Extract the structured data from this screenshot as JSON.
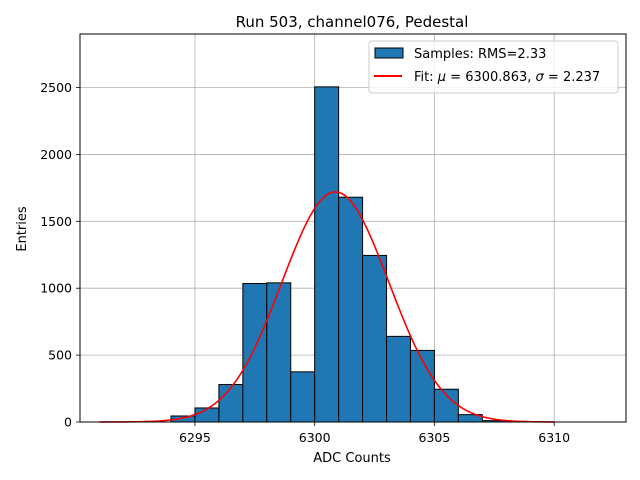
{
  "chart_data": {
    "type": "bar",
    "title": "Run 503, channel076, Pedestal",
    "xlabel": "ADC Counts",
    "ylabel": "Entries",
    "xlim": [
      6290.2,
      6313.0
    ],
    "ylim": [
      0,
      2900
    ],
    "xticks": [
      6295,
      6300,
      6305,
      6310
    ],
    "yticks": [
      0,
      500,
      1000,
      1500,
      2000,
      2500
    ],
    "grid": true,
    "bar_color": "#1f77b4",
    "bar_edge_color": "#000000",
    "fit_color": "#ff0000",
    "histogram": {
      "name": "Samples: RMS=2.33",
      "bins": [
        {
          "x0": 6294.0,
          "x1": 6295.0,
          "count": 45
        },
        {
          "x0": 6295.0,
          "x1": 6296.0,
          "count": 105
        },
        {
          "x0": 6296.0,
          "x1": 6297.0,
          "count": 280
        },
        {
          "x0": 6297.0,
          "x1": 6298.0,
          "count": 1035
        },
        {
          "x0": 6298.0,
          "x1": 6299.0,
          "count": 1040
        },
        {
          "x0": 6299.0,
          "x1": 6300.0,
          "count": 375
        },
        {
          "x0": 6300.0,
          "x1": 6301.0,
          "count": 2505
        },
        {
          "x0": 6301.0,
          "x1": 6302.0,
          "count": 1680
        },
        {
          "x0": 6302.0,
          "x1": 6303.0,
          "count": 1245
        },
        {
          "x0": 6303.0,
          "x1": 6304.0,
          "count": 640
        },
        {
          "x0": 6304.0,
          "x1": 6305.0,
          "count": 535
        },
        {
          "x0": 6305.0,
          "x1": 6306.0,
          "count": 245
        },
        {
          "x0": 6306.0,
          "x1": 6307.0,
          "count": 55
        },
        {
          "x0": 6307.0,
          "x1": 6308.0,
          "count": 10
        }
      ]
    },
    "fit": {
      "name_prefix": "Fit: ",
      "mu_symbol": "μ",
      "sigma_symbol": "σ",
      "mu": 6300.863,
      "sigma": 2.237,
      "amplitude": 1720,
      "x_range": [
        6291.0,
        6310.0
      ]
    },
    "legend_position": "top-right"
  }
}
